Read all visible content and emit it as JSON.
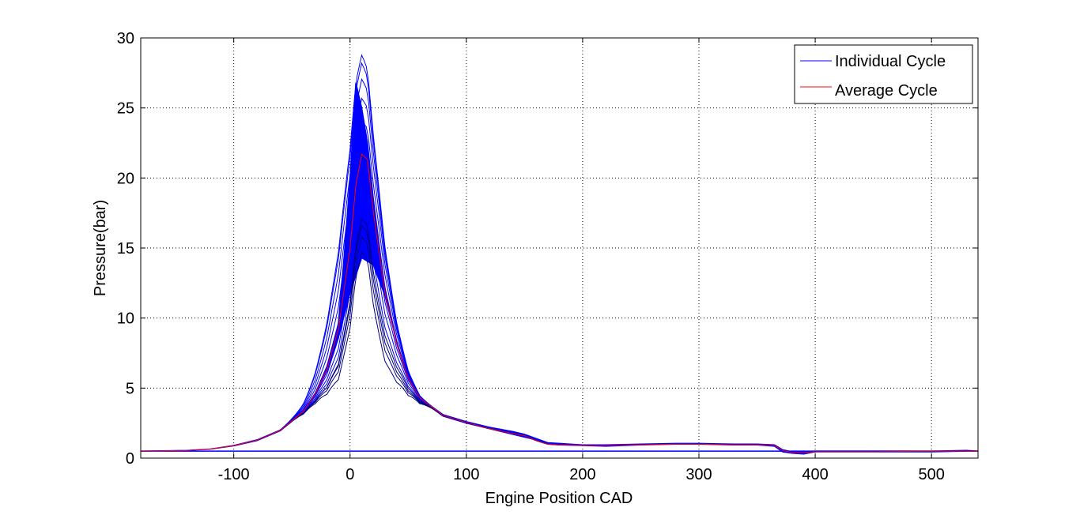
{
  "chart_data": {
    "type": "line",
    "title": "",
    "xlabel": "Engine Position CAD",
    "ylabel": "Pressure(bar)",
    "xlim": [
      -180,
      540
    ],
    "ylim": [
      0,
      30
    ],
    "x_ticks": [
      -100,
      0,
      100,
      200,
      300,
      400,
      500
    ],
    "x_tick_labels": [
      "-100",
      "0",
      "100",
      "200",
      "300",
      "400",
      "500"
    ],
    "y_ticks": [
      0,
      5,
      10,
      15,
      20,
      25,
      30
    ],
    "y_tick_labels": [
      "0",
      "5",
      "10",
      "15",
      "20",
      "25",
      "30"
    ],
    "grid": true,
    "legend_position": "top-right",
    "series": [
      {
        "name": "Individual Cycle",
        "color": "#0000ff",
        "description_note_removed": true,
        "envelope_upper": {
          "x": [
            -180,
            -140,
            -120,
            -100,
            -80,
            -60,
            -40,
            -30,
            -20,
            -10,
            -5,
            0,
            5,
            10,
            15,
            20,
            30,
            40,
            50,
            60,
            80,
            100,
            120,
            140,
            150,
            160,
            170,
            180,
            200,
            220,
            250,
            280,
            300,
            330,
            350,
            365,
            372,
            380,
            390,
            400,
            450,
            500,
            530,
            540
          ],
          "y": [
            0.5,
            0.55,
            0.65,
            0.9,
            1.3,
            2.0,
            3.4,
            4.6,
            6.4,
            9.6,
            14.5,
            20.0,
            26.8,
            25.0,
            22.5,
            18.5,
            12.0,
            8.2,
            5.7,
            4.3,
            3.1,
            2.6,
            2.2,
            1.9,
            1.7,
            1.4,
            1.1,
            1.05,
            0.95,
            0.95,
            1.0,
            1.05,
            1.05,
            1.0,
            1.0,
            0.95,
            0.6,
            0.45,
            0.45,
            0.5,
            0.5,
            0.5,
            0.55,
            0.5
          ]
        },
        "envelope_lower": {
          "x": [
            -180,
            -140,
            -120,
            -100,
            -80,
            -60,
            -40,
            -30,
            -20,
            -10,
            0,
            10,
            20,
            30,
            40,
            50,
            60,
            80,
            100,
            120,
            140,
            160,
            170,
            180,
            200,
            220,
            250,
            280,
            300,
            330,
            350,
            365,
            372,
            380,
            390,
            400,
            450,
            500,
            530,
            540
          ],
          "y": [
            0.5,
            0.55,
            0.65,
            0.88,
            1.25,
            1.95,
            3.3,
            4.5,
            6.2,
            8.6,
            11.8,
            14.3,
            13.8,
            11.6,
            8.3,
            5.8,
            4.2,
            3.0,
            2.5,
            2.1,
            1.7,
            1.3,
            1.0,
            0.95,
            0.9,
            0.85,
            0.95,
            1.0,
            1.0,
            0.95,
            0.95,
            0.85,
            0.45,
            0.35,
            0.3,
            0.45,
            0.45,
            0.45,
            0.5,
            0.5
          ]
        },
        "peak_curves": [
          {
            "peak_x": 5,
            "peak_y": 26.8
          },
          {
            "peak_x": 5,
            "peak_y": 26.2
          },
          {
            "peak_x": 6,
            "peak_y": 25.4
          },
          {
            "peak_x": 7,
            "peak_y": 24.4
          },
          {
            "peak_x": 8,
            "peak_y": 23.2
          },
          {
            "peak_x": 9,
            "peak_y": 22.0
          },
          {
            "peak_x": 10,
            "peak_y": 20.6
          },
          {
            "peak_x": 11,
            "peak_y": 19.2
          },
          {
            "peak_x": 12,
            "peak_y": 17.8
          },
          {
            "peak_x": 12,
            "peak_y": 16.9
          },
          {
            "peak_x": 13,
            "peak_y": 16.3
          },
          {
            "peak_x": 13,
            "peak_y": 15.5
          },
          {
            "peak_x": 13,
            "peak_y": 14.4
          }
        ],
        "baseline": {
          "x": [
            -180,
            540
          ],
          "y": [
            0.5,
            0.5
          ]
        }
      },
      {
        "name": "Average Cycle",
        "color": "#ff0000",
        "x": [
          -180,
          -140,
          -120,
          -100,
          -80,
          -60,
          -40,
          -30,
          -20,
          -10,
          0,
          5,
          10,
          15,
          20,
          30,
          40,
          50,
          60,
          80,
          100,
          120,
          140,
          150,
          160,
          170,
          180,
          200,
          220,
          250,
          280,
          300,
          330,
          350,
          365,
          372,
          380,
          390,
          400,
          450,
          500,
          530,
          540
        ],
        "y": [
          0.5,
          0.55,
          0.65,
          0.9,
          1.28,
          1.98,
          3.35,
          4.55,
          6.3,
          9.2,
          15.0,
          19.5,
          21.7,
          21.3,
          17.6,
          11.8,
          8.2,
          5.7,
          4.3,
          3.05,
          2.55,
          2.1,
          1.75,
          1.6,
          1.25,
          1.0,
          0.95,
          0.9,
          0.9,
          0.95,
          1.0,
          1.0,
          0.95,
          0.95,
          0.9,
          0.55,
          0.4,
          0.4,
          0.45,
          0.45,
          0.5,
          0.5,
          0.5
        ]
      }
    ]
  }
}
